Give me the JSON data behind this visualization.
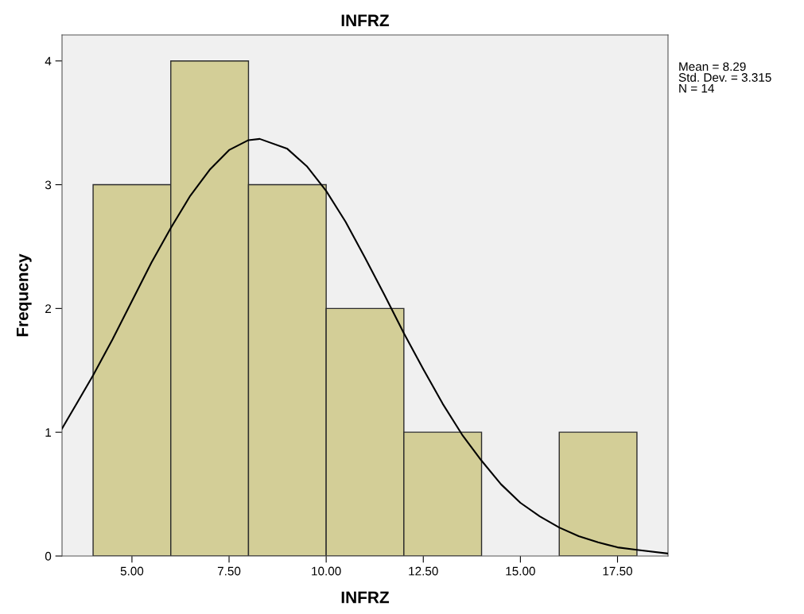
{
  "chart_data": {
    "type": "histogram",
    "title": "INFRZ",
    "xlabel": "INFRZ",
    "ylabel": "Frequency",
    "bins": [
      4,
      6,
      8,
      10,
      12,
      14,
      16,
      18
    ],
    "values": [
      3,
      4,
      3,
      2,
      1,
      0,
      1
    ],
    "color": "#d3ce97",
    "series": [
      {
        "type": "line",
        "color": "#000000",
        "x": [
          3.2,
          3.5,
          4,
          4.5,
          5,
          5.5,
          6,
          6.5,
          7,
          7.5,
          8,
          8.29,
          9,
          9.5,
          10,
          10.5,
          11,
          11.5,
          12,
          12.5,
          13,
          13.5,
          14,
          14.5,
          15,
          15.5,
          16,
          16.5,
          17,
          17.5,
          18,
          18.8
        ],
        "values": [
          1.03,
          1.19,
          1.46,
          1.75,
          2.06,
          2.37,
          2.65,
          2.91,
          3.12,
          3.28,
          3.36,
          3.37,
          3.29,
          3.15,
          2.95,
          2.7,
          2.41,
          2.11,
          1.8,
          1.51,
          1.23,
          0.98,
          0.77,
          0.58,
          0.43,
          0.32,
          0.23,
          0.16,
          0.11,
          0.07,
          0.05,
          0.02
        ]
      }
    ],
    "xlim": [
      3.2,
      18.8
    ],
    "xticks": [
      {
        "value": 5,
        "label": "5.00"
      },
      {
        "value": 7.5,
        "label": "7.50"
      },
      {
        "value": 10,
        "label": "10.00"
      },
      {
        "value": 12.5,
        "label": "12.50"
      },
      {
        "value": 15,
        "label": "15.00"
      },
      {
        "value": 17.5,
        "label": "17.50"
      }
    ],
    "ylim": [
      0,
      4.21
    ],
    "yticks": [
      0,
      1,
      2,
      3,
      4
    ],
    "annotations": [
      "Mean = 8.29\nStd. Dev. = 3.315\nN = 14"
    ]
  }
}
